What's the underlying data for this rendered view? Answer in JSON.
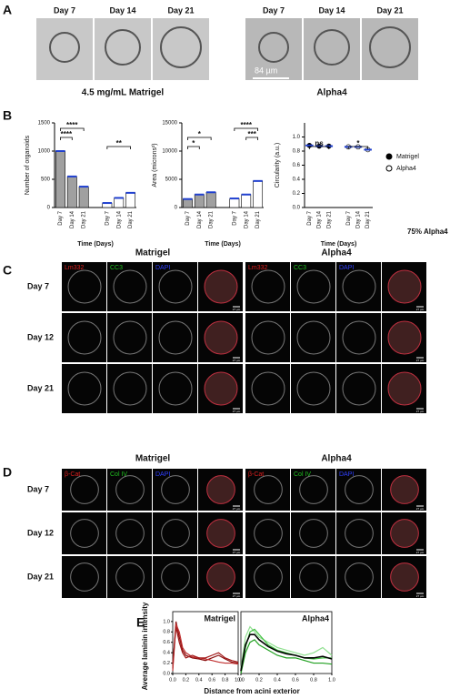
{
  "panel_a": {
    "label": "A",
    "days": [
      "Day 7",
      "Day 14",
      "Day 21"
    ],
    "groups": [
      "4.5 mg/mL Matrigel",
      "Alpha4"
    ],
    "scale_bar": "84 µm"
  },
  "panel_b": {
    "label": "B",
    "note": "75% Alpha4",
    "legend": [
      "Matrigel",
      "Alpha4"
    ],
    "charts": [
      {
        "type": "bar",
        "ylabel": "Number of organoids",
        "xlabel": "Time (Days)",
        "categories": [
          "Day 7",
          "Day 14",
          "Day 21",
          "Day 7",
          "Day 14",
          "Day 21"
        ],
        "values": [
          1000,
          550,
          370,
          80,
          170,
          260
        ],
        "colors": [
          "#a0a0a0",
          "#a0a0a0",
          "#a0a0a0",
          "#ffffff",
          "#ffffff",
          "#ffffff"
        ],
        "ylim": [
          0,
          1500
        ],
        "yticks": [
          0,
          500,
          1000,
          1500
        ],
        "annotations": [
          "****",
          "****",
          "**"
        ]
      },
      {
        "type": "bar",
        "ylabel": "Area (microns²)",
        "xlabel": "Time (Days)",
        "categories": [
          "Day 7",
          "Day 14",
          "Day 21",
          "Day 7",
          "Day 14",
          "Day 21"
        ],
        "values": [
          1500,
          2300,
          2700,
          1600,
          2300,
          4700
        ],
        "colors": [
          "#a0a0a0",
          "#a0a0a0",
          "#a0a0a0",
          "#ffffff",
          "#ffffff",
          "#ffffff"
        ],
        "ylim": [
          0,
          15000
        ],
        "yticks": [
          0,
          5000,
          10000,
          15000
        ],
        "annotations": [
          "*",
          "*",
          "****",
          "***"
        ]
      },
      {
        "type": "dot",
        "ylabel": "Circularity (a.u.)",
        "xlabel": "Time (Days)",
        "categories": [
          "Day 7",
          "Day 14",
          "Day 21",
          "Day 7",
          "Day 14",
          "Day 21"
        ],
        "values": [
          0.88,
          0.87,
          0.87,
          0.86,
          0.86,
          0.82
        ],
        "colors": [
          "#000000",
          "#000000",
          "#000000",
          "#ffffff",
          "#ffffff",
          "#ffffff"
        ],
        "ylim": [
          0,
          1.2
        ],
        "yticks": [
          {
            "value": 0,
            "label": "0.0"
          },
          0.2,
          0.4,
          0.6,
          0.8,
          {
            "value": 1,
            "label": "1.0"
          }
        ],
        "annotations": [
          "ns",
          "*"
        ]
      }
    ]
  },
  "panel_c": {
    "label": "C",
    "groups": [
      "Matrigel",
      "Alpha4"
    ],
    "channels": [
      "Lm332",
      "CC3",
      "DAPI"
    ],
    "channel_colors": [
      "#e02020",
      "#20c020",
      "#3040ff"
    ],
    "rows": [
      "Day 7",
      "Day 12",
      "Day 21"
    ],
    "scale_bar": "27 µm"
  },
  "panel_d": {
    "label": "D",
    "groups": [
      "Matrigel",
      "Alpha4"
    ],
    "channels": [
      "β-Cat",
      "Col IV",
      "DAPI"
    ],
    "channel_colors": [
      "#e02020",
      "#20c020",
      "#3040ff"
    ],
    "rows": [
      "Day 7",
      "Day 12",
      "Day 21"
    ],
    "scale_bar": "27 µm"
  },
  "panel_e": {
    "label": "E",
    "ylabel": "Average laminin intensity",
    "xlabel": "Distance from acini exterior",
    "charts": [
      {
        "type": "line",
        "title": "Matrigel",
        "x": [
          0,
          0.05,
          0.1,
          0.15,
          0.2,
          0.3,
          0.4,
          0.5,
          0.6,
          0.7,
          0.8,
          0.9,
          1.0
        ],
        "xlim": [
          0,
          1
        ],
        "ylim": [
          0,
          1.05
        ],
        "xticks": [
          {
            "value": 0,
            "label": "0.0"
          },
          0.2,
          0.4,
          0.6,
          0.8,
          {
            "value": 1,
            "label": "1.0"
          }
        ],
        "yticks": [
          {
            "value": 0,
            "label": "0.0"
          },
          0.2,
          0.4,
          0.6,
          0.8,
          {
            "value": 1,
            "label": "1.0"
          }
        ],
        "series": [
          {
            "color": "#8b1010",
            "values": [
              0.1,
              1.0,
              0.7,
              0.45,
              0.35,
              0.3,
              0.28,
              0.25,
              0.3,
              0.35,
              0.28,
              0.22,
              0.2
            ]
          },
          {
            "color": "#c03030",
            "values": [
              0.05,
              0.95,
              0.8,
              0.5,
              0.4,
              0.32,
              0.3,
              0.28,
              0.25,
              0.22,
              0.2,
              0.2,
              0.18
            ]
          },
          {
            "color": "#a01818",
            "values": [
              0.2,
              0.9,
              0.6,
              0.4,
              0.3,
              0.35,
              0.3,
              0.3,
              0.35,
              0.4,
              0.3,
              0.25,
              0.22
            ]
          }
        ]
      },
      {
        "type": "line",
        "title": "Alpha4",
        "x": [
          0,
          0.05,
          0.1,
          0.15,
          0.2,
          0.3,
          0.4,
          0.5,
          0.6,
          0.7,
          0.8,
          0.9,
          1.0
        ],
        "xlim": [
          0,
          1
        ],
        "ylim": [
          0,
          1.05
        ],
        "xticks": [
          {
            "value": 0,
            "label": "0.0"
          },
          0.2,
          0.4,
          0.6,
          0.8,
          {
            "value": 1,
            "label": "1.0"
          }
        ],
        "series": [
          {
            "color": "#90e090",
            "values": [
              0.1,
              0.7,
              0.9,
              0.8,
              0.7,
              0.6,
              0.5,
              0.45,
              0.4,
              0.35,
              0.4,
              0.5,
              0.35
            ]
          },
          {
            "color": "#40c040",
            "values": [
              0.05,
              0.5,
              0.8,
              0.85,
              0.75,
              0.55,
              0.45,
              0.4,
              0.35,
              0.3,
              0.28,
              0.3,
              0.3
            ]
          },
          {
            "color": "#20a020",
            "values": [
              0,
              0.4,
              0.6,
              0.65,
              0.55,
              0.45,
              0.35,
              0.3,
              0.3,
              0.25,
              0.2,
              0.2,
              0.18
            ]
          },
          {
            "color": "#000000",
            "values": [
              0.05,
              0.55,
              0.75,
              0.75,
              0.65,
              0.52,
              0.43,
              0.38,
              0.35,
              0.3,
              0.3,
              0.33,
              0.28
            ]
          }
        ]
      }
    ]
  }
}
